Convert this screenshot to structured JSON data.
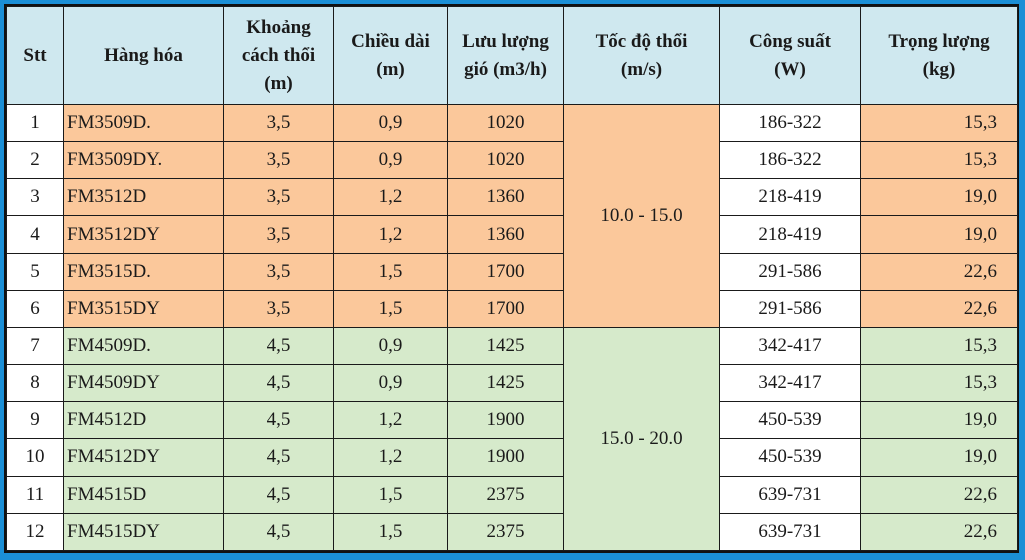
{
  "headers": [
    "Stt",
    "Hàng hóa",
    "Khoảng cách thổi (m)",
    "Chiều dài (m)",
    "Lưu lượng gió (m3/h)",
    "Tốc độ thổi (m/s)",
    "Công suất (W)",
    "Trọng lượng (kg)"
  ],
  "header_lines": [
    [
      "Stt"
    ],
    [
      "Hàng hóa"
    ],
    [
      "Khoảng",
      "cách thổi",
      "(m)"
    ],
    [
      "Chiều dài",
      "(m)"
    ],
    [
      "Lưu lượng",
      "gió (m3/h)"
    ],
    [
      "Tốc độ thổi",
      "(m/s)"
    ],
    [
      "Công suất",
      "(W)"
    ],
    [
      "Trọng lượng",
      "(kg)"
    ]
  ],
  "speed_groups": [
    "10.0 - 15.0",
    "15.0 - 20.0"
  ],
  "colors": {
    "frame": "#1b8fd6",
    "header": "#cfe8ef",
    "group1": "#fbc89b",
    "group2": "#d6eacb",
    "white": "#ffffff"
  },
  "rows": [
    {
      "stt": "1",
      "name": "FM3509D.",
      "distance": "3,5",
      "length": "0,9",
      "airflow": "1020",
      "power": "186-322",
      "weight": "15,3"
    },
    {
      "stt": "2",
      "name": "FM3509DY.",
      "distance": "3,5",
      "length": "0,9",
      "airflow": "1020",
      "power": "186-322",
      "weight": "15,3"
    },
    {
      "stt": "3",
      "name": "FM3512D",
      "distance": "3,5",
      "length": "1,2",
      "airflow": "1360",
      "power": "218-419",
      "weight": "19,0"
    },
    {
      "stt": "4",
      "name": "FM3512DY",
      "distance": "3,5",
      "length": "1,2",
      "airflow": "1360",
      "power": "218-419",
      "weight": "19,0"
    },
    {
      "stt": "5",
      "name": "FM3515D.",
      "distance": "3,5",
      "length": "1,5",
      "airflow": "1700",
      "power": "291-586",
      "weight": "22,6"
    },
    {
      "stt": "6",
      "name": "FM3515DY",
      "distance": "3,5",
      "length": "1,5",
      "airflow": "1700",
      "power": "291-586",
      "weight": "22,6"
    },
    {
      "stt": "7",
      "name": "FM4509D.",
      "distance": "4,5",
      "length": "0,9",
      "airflow": "1425",
      "power": "342-417",
      "weight": "15,3"
    },
    {
      "stt": "8",
      "name": "FM4509DY",
      "distance": "4,5",
      "length": "0,9",
      "airflow": "1425",
      "power": "342-417",
      "weight": "15,3"
    },
    {
      "stt": "9",
      "name": "FM4512D",
      "distance": "4,5",
      "length": "1,2",
      "airflow": "1900",
      "power": "450-539",
      "weight": "19,0"
    },
    {
      "stt": "10",
      "name": "FM4512DY",
      "distance": "4,5",
      "length": "1,2",
      "airflow": "1900",
      "power": "450-539",
      "weight": "19,0"
    },
    {
      "stt": "11",
      "name": "FM4515D",
      "distance": "4,5",
      "length": "1,5",
      "airflow": "2375",
      "power": "639-731",
      "weight": "22,6"
    },
    {
      "stt": "12",
      "name": "FM4515DY",
      "distance": "4,5",
      "length": "1,5",
      "airflow": "2375",
      "power": "639-731",
      "weight": "22,6"
    }
  ]
}
